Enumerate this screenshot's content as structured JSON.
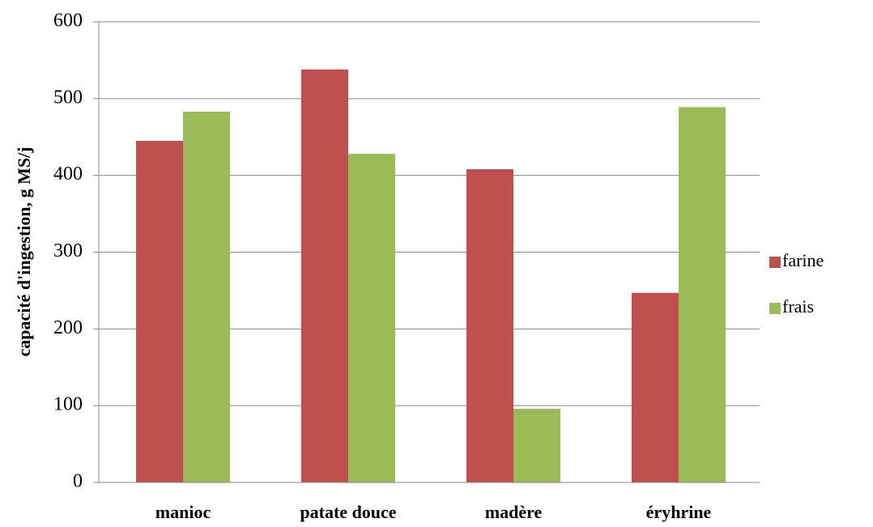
{
  "chart_data": {
    "type": "bar",
    "y_label": "capacité d'ingestion, g MS/j",
    "categories": [
      "manioc",
      "patate douce",
      "madère",
      "éryhrine"
    ],
    "series": [
      {
        "name": "farine",
        "color": "#c0504d",
        "values": [
          445,
          538,
          408,
          247
        ]
      },
      {
        "name": "frais",
        "color": "#9bbb59",
        "values": [
          483,
          428,
          96,
          489
        ]
      }
    ],
    "ylim": [
      0,
      600
    ],
    "yticks": [
      0,
      100,
      200,
      300,
      400,
      500,
      600
    ],
    "grid": true,
    "legend": "right"
  }
}
